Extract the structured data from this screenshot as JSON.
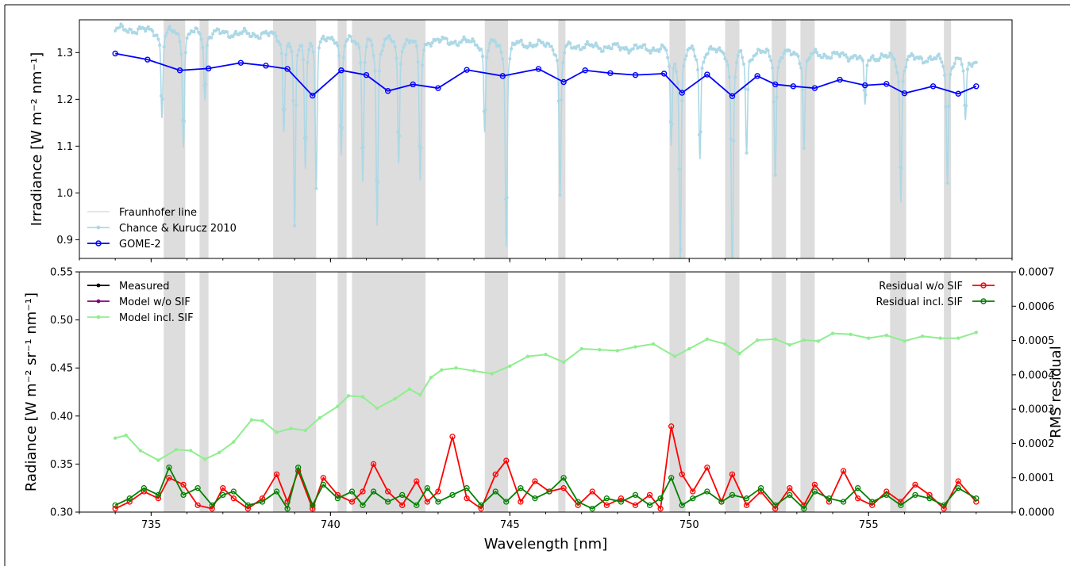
{
  "chart_data": [
    {
      "type": "line",
      "panel": "top",
      "xlabel": "",
      "ylabel": "Irradiance [W m⁻² nm⁻¹]",
      "xlim": [
        733,
        759
      ],
      "ylim": [
        0.86,
        1.37
      ],
      "yticks": [
        0.9,
        1.0,
        1.1,
        1.2,
        1.3
      ],
      "ytick_labels": [
        "0.9",
        "1.0",
        "1.1",
        "1.2",
        "1.3"
      ],
      "legend_position": "lower-left",
      "fraunhofer_bands": [
        [
          735.35,
          735.95
        ],
        [
          736.35,
          736.6
        ],
        [
          738.4,
          739.6
        ],
        [
          740.2,
          740.45
        ],
        [
          740.6,
          742.65
        ],
        [
          744.3,
          744.95
        ],
        [
          746.35,
          746.55
        ],
        [
          749.45,
          749.9
        ],
        [
          751.0,
          751.4
        ],
        [
          752.3,
          752.7
        ],
        [
          753.1,
          753.5
        ],
        [
          755.6,
          756.05
        ],
        [
          757.1,
          757.3
        ]
      ],
      "series": [
        {
          "name": "Fraunhofer line",
          "color": "#dddddd",
          "style": "shaded-band"
        },
        {
          "name": "Chance & Kurucz 2010",
          "color": "#add8e6",
          "marker": "dot",
          "x_start": 734.0,
          "x_end": 758.0,
          "baseline_start": 1.35,
          "baseline_end": 1.283,
          "absorption_lines": [
            [
              735.3,
              1.19
            ],
            [
              735.9,
              1.14
            ],
            [
              736.5,
              1.22
            ],
            [
              738.7,
              1.16
            ],
            [
              739.0,
              0.99
            ],
            [
              739.3,
              1.1
            ],
            [
              739.6,
              1.06
            ],
            [
              740.3,
              1.11
            ],
            [
              740.9,
              1.07
            ],
            [
              741.3,
              0.99
            ],
            [
              741.9,
              1.1
            ],
            [
              742.5,
              1.07
            ],
            [
              744.3,
              1.16
            ],
            [
              744.9,
              0.96
            ],
            [
              746.4,
              1.04
            ],
            [
              749.5,
              1.13
            ],
            [
              749.75,
              0.92
            ],
            [
              750.3,
              1.11
            ],
            [
              751.2,
              0.87
            ],
            [
              751.6,
              1.12
            ],
            [
              752.4,
              1.08
            ],
            [
              753.2,
              1.13
            ],
            [
              754.9,
              1.2
            ],
            [
              755.9,
              1.03
            ],
            [
              757.2,
              1.06
            ],
            [
              757.7,
              1.17
            ]
          ]
        },
        {
          "name": "GOME-2",
          "color": "#0000ff",
          "marker": "circle",
          "x": [
            734.0,
            734.9,
            735.8,
            736.6,
            737.5,
            738.2,
            738.8,
            739.5,
            740.3,
            741.0,
            741.6,
            742.3,
            743.0,
            743.8,
            744.8,
            745.8,
            746.5,
            747.1,
            747.8,
            748.5,
            749.3,
            749.8,
            750.5,
            751.2,
            751.9,
            752.4,
            752.9,
            753.5,
            754.2,
            754.9,
            755.5,
            756.0,
            756.8,
            757.5,
            758.0
          ],
          "y": [
            1.298,
            1.285,
            1.262,
            1.266,
            1.278,
            1.272,
            1.265,
            1.208,
            1.262,
            1.252,
            1.218,
            1.232,
            1.224,
            1.263,
            1.25,
            1.265,
            1.237,
            1.262,
            1.256,
            1.252,
            1.255,
            1.214,
            1.253,
            1.207,
            1.25,
            1.232,
            1.228,
            1.224,
            1.242,
            1.23,
            1.233,
            1.213,
            1.228,
            1.212,
            1.228
          ]
        }
      ]
    },
    {
      "type": "line",
      "panel": "bottom",
      "xlabel": "Wavelength [nm]",
      "ylabel": "Radiance [W m⁻² sr⁻¹ nm⁻¹]",
      "ylabel_right": "RMS residual",
      "xlim": [
        733,
        759
      ],
      "ylim": [
        0.3,
        0.55
      ],
      "ylim_right": [
        0.0,
        0.0007
      ],
      "xticks": [
        735,
        740,
        745,
        750,
        755
      ],
      "xtick_labels": [
        "735",
        "740",
        "745",
        "750",
        "755"
      ],
      "yticks": [
        0.3,
        0.35,
        0.4,
        0.45,
        0.5,
        0.55
      ],
      "ytick_labels": [
        "0.30",
        "0.35",
        "0.40",
        "0.45",
        "0.50",
        "0.55"
      ],
      "yticks_right": [
        0.0,
        0.0001,
        0.0002,
        0.0003,
        0.0004,
        0.0005,
        0.0006,
        0.0007
      ],
      "ytick_labels_right": [
        "0.0000",
        "0.0001",
        "0.0002",
        "0.0003",
        "0.0004",
        "0.0005",
        "0.0006",
        "0.0007"
      ],
      "legend_left_position": "upper-left",
      "legend_right_position": "upper-right",
      "radiance": {
        "x": [
          734.0,
          734.3,
          734.7,
          735.2,
          735.7,
          736.1,
          736.5,
          736.9,
          737.3,
          737.8,
          738.1,
          738.5,
          738.9,
          739.3,
          739.7,
          740.2,
          740.5,
          740.9,
          741.3,
          741.8,
          742.2,
          742.5,
          742.8,
          743.1,
          743.5,
          744.0,
          744.5,
          745.0,
          745.5,
          746.0,
          746.5,
          747.0,
          747.5,
          748.0,
          748.5,
          749.0,
          749.6,
          750.0,
          750.5,
          751.0,
          751.4,
          751.9,
          752.4,
          752.8,
          753.2,
          753.6,
          754.0,
          754.5,
          755.0,
          755.5,
          756.0,
          756.5,
          757.0,
          757.5,
          758.0
        ],
        "y": [
          0.377,
          0.38,
          0.364,
          0.354,
          0.365,
          0.364,
          0.355,
          0.362,
          0.373,
          0.396,
          0.395,
          0.383,
          0.387,
          0.385,
          0.398,
          0.41,
          0.421,
          0.42,
          0.408,
          0.418,
          0.428,
          0.422,
          0.44,
          0.448,
          0.45,
          0.447,
          0.444,
          0.452,
          0.462,
          0.464,
          0.456,
          0.47,
          0.469,
          0.468,
          0.472,
          0.475,
          0.462,
          0.47,
          0.48,
          0.475,
          0.465,
          0.479,
          0.48,
          0.474,
          0.479,
          0.478,
          0.486,
          0.485,
          0.481,
          0.484,
          0.478,
          0.483,
          0.481,
          0.481,
          0.487
        ]
      },
      "series": [
        {
          "name": "Measured",
          "color": "#000000",
          "marker": "dot",
          "source": "radiance"
        },
        {
          "name": "Model w/o SIF",
          "color": "#800080",
          "marker": "dot",
          "source": "radiance"
        },
        {
          "name": "Model incl. SIF",
          "color": "#90ee90",
          "marker": "dot",
          "source": "radiance"
        },
        {
          "name": "Residual w/o SIF",
          "color": "#ff0000",
          "marker": "circle",
          "axis": "right",
          "x": [
            734.0,
            734.4,
            734.8,
            735.2,
            735.5,
            735.9,
            736.3,
            736.7,
            737.0,
            737.3,
            737.7,
            738.1,
            738.5,
            738.8,
            739.1,
            739.5,
            739.8,
            740.2,
            740.6,
            740.9,
            741.2,
            741.6,
            742.0,
            742.4,
            742.7,
            743.0,
            743.4,
            743.8,
            744.2,
            744.6,
            744.9,
            745.3,
            745.7,
            746.1,
            746.5,
            746.9,
            747.3,
            747.7,
            748.1,
            748.5,
            748.9,
            749.2,
            749.5,
            749.8,
            750.1,
            750.5,
            750.9,
            751.2,
            751.6,
            752.0,
            752.4,
            752.8,
            753.2,
            753.5,
            753.9,
            754.3,
            754.7,
            755.1,
            755.5,
            755.9,
            756.3,
            756.7,
            757.1,
            757.5,
            758.0
          ],
          "y": [
            1e-05,
            3e-05,
            6e-05,
            4e-05,
            0.0001,
            8e-05,
            2e-05,
            1e-05,
            7e-05,
            4e-05,
            1e-05,
            4e-05,
            0.00011,
            3e-05,
            0.00012,
            1e-05,
            0.0001,
            5e-05,
            3e-05,
            6e-05,
            0.00014,
            6e-05,
            2e-05,
            9e-05,
            3e-05,
            6e-05,
            0.00022,
            4e-05,
            1e-05,
            0.00011,
            0.00015,
            3e-05,
            9e-05,
            6e-05,
            7e-05,
            2e-05,
            6e-05,
            2e-05,
            4e-05,
            2e-05,
            5e-05,
            1e-05,
            0.00025,
            0.00011,
            6e-05,
            0.00013,
            3e-05,
            0.00011,
            2e-05,
            6e-05,
            1e-05,
            7e-05,
            2e-05,
            8e-05,
            3e-05,
            0.00012,
            4e-05,
            2e-05,
            6e-05,
            3e-05,
            8e-05,
            5e-05,
            1e-05,
            9e-05,
            3e-05
          ]
        },
        {
          "name": "Residual incl. SIF",
          "color": "#008000",
          "marker": "circle",
          "axis": "right",
          "x": [
            734.0,
            734.4,
            734.8,
            735.2,
            735.5,
            735.9,
            736.3,
            736.7,
            737.0,
            737.3,
            737.7,
            738.1,
            738.5,
            738.8,
            739.1,
            739.5,
            739.8,
            740.2,
            740.6,
            740.9,
            741.2,
            741.6,
            742.0,
            742.4,
            742.7,
            743.0,
            743.4,
            743.8,
            744.2,
            744.6,
            744.9,
            745.3,
            745.7,
            746.1,
            746.5,
            746.9,
            747.3,
            747.7,
            748.1,
            748.5,
            748.9,
            749.2,
            749.5,
            749.8,
            750.1,
            750.5,
            750.9,
            751.2,
            751.6,
            752.0,
            752.4,
            752.8,
            753.2,
            753.5,
            753.9,
            754.3,
            754.7,
            755.1,
            755.5,
            755.9,
            756.3,
            756.7,
            757.1,
            757.5,
            758.0
          ],
          "y": [
            2e-05,
            4e-05,
            7e-05,
            5e-05,
            0.00013,
            5e-05,
            7e-05,
            2e-05,
            5e-05,
            6e-05,
            2e-05,
            3e-05,
            6e-05,
            1e-05,
            0.00013,
            2e-05,
            8e-05,
            4e-05,
            6e-05,
            2e-05,
            6e-05,
            3e-05,
            5e-05,
            2e-05,
            7e-05,
            3e-05,
            5e-05,
            7e-05,
            2e-05,
            6e-05,
            3e-05,
            7e-05,
            4e-05,
            6e-05,
            0.0001,
            3e-05,
            1e-05,
            4e-05,
            3e-05,
            5e-05,
            2e-05,
            4e-05,
            0.0001,
            2e-05,
            4e-05,
            6e-05,
            3e-05,
            5e-05,
            4e-05,
            7e-05,
            2e-05,
            5e-05,
            1e-05,
            6e-05,
            4e-05,
            3e-05,
            7e-05,
            3e-05,
            5e-05,
            2e-05,
            5e-05,
            4e-05,
            2e-05,
            7e-05,
            4e-05
          ]
        }
      ]
    }
  ]
}
